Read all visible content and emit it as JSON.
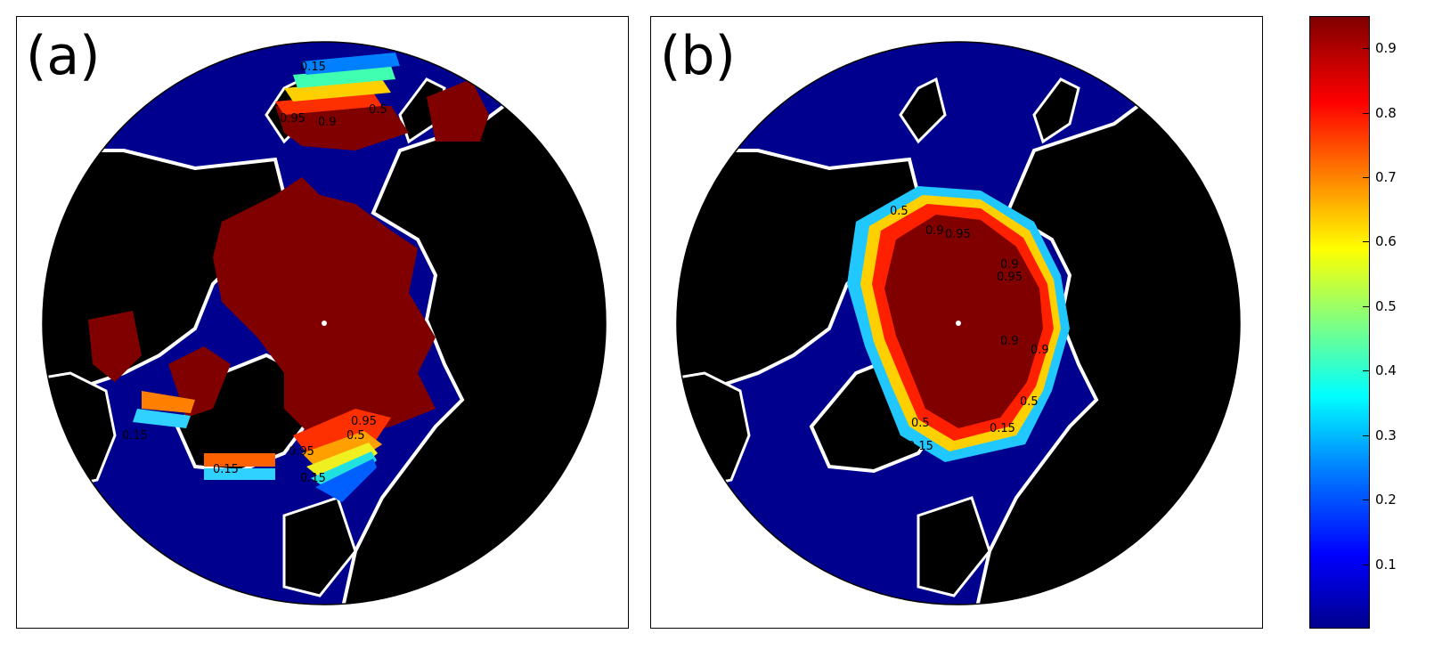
{
  "panels": [
    {
      "label": "(a)",
      "contour_labels": [
        "0.15",
        "0.5",
        "0.95",
        "0.9",
        "0.15",
        "0.15",
        "0.95",
        "0.5",
        "0.95",
        "0.15"
      ]
    },
    {
      "label": "(b)",
      "contour_labels": [
        "0.5",
        "0.9",
        "0.95",
        "0.9",
        "0.95",
        "0.9",
        "0.9",
        "0.5",
        "0.15",
        "0.5",
        "0.15"
      ]
    }
  ],
  "colors": {
    "land": "#000000",
    "coast": "#ffffff",
    "ice_max": "#800000",
    "ice_min": "#00008f"
  },
  "colorbar": {
    "min": 0.0,
    "max": 0.95,
    "ticks": [
      "0.9",
      "0.8",
      "0.7",
      "0.6",
      "0.5",
      "0.4",
      "0.3",
      "0.2",
      "0.1"
    ],
    "colormap": "jet"
  }
}
